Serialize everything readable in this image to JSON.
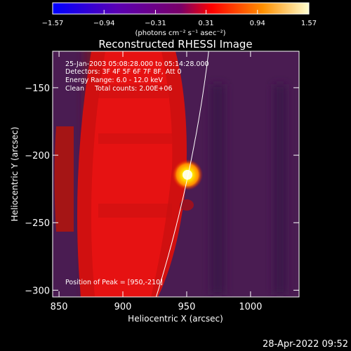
{
  "chart_data": {
    "type": "heatmap",
    "title": "Reconstructed RHESSI Image",
    "xlabel": "Heliocentric X (arcsec)",
    "ylabel": "Heliocentric Y (arcsec)",
    "xlim": [
      845,
      1038
    ],
    "ylim": [
      -305,
      -123
    ],
    "x_ticks": [
      850,
      900,
      950,
      1000
    ],
    "y_ticks": [
      -150,
      -200,
      -250,
      -300
    ],
    "x_tick_labels": [
      "850",
      "900",
      "950",
      "1000"
    ],
    "y_tick_labels": [
      "−150",
      "−200",
      "−250",
      "−300"
    ],
    "colorbar": {
      "min": -1.57,
      "max": 1.57,
      "ticks": [
        -1.57,
        -0.94,
        -0.31,
        0.31,
        0.94,
        1.57
      ],
      "tick_labels": [
        "−1.57",
        "−0.94",
        "−0.31",
        "0.31",
        "0.94",
        "1.57"
      ],
      "units_label": "(photons cm⁻² s⁻¹ asec⁻²)"
    },
    "peak": {
      "x": 950,
      "y": -210,
      "value": 1.57
    },
    "annotation_lines": [
      "25-Jan-2003 05:08:28.000 to 05:14:28.000",
      "Detectors: 3F 4F 5F 6F 7F 8F, Att 0",
      "Energy Range: 6.0 - 12.0 keV",
      "Clean     Total counts: 2.00E+06"
    ],
    "peak_label": "Position of Peak = [950,-210]",
    "solar_limb": {
      "radius_arcsec": 975
    },
    "colors": {
      "background": "#000000",
      "limb": "#ffffff"
    }
  },
  "timestamp": "28-Apr-2022 09:52"
}
